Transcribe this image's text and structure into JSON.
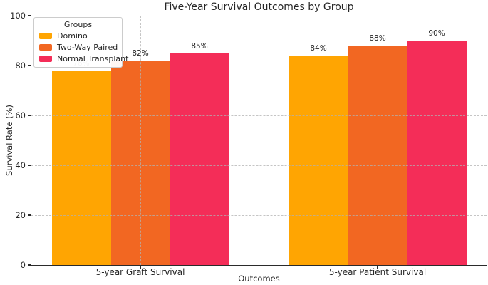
{
  "chart_data": {
    "type": "bar",
    "title": "Five-Year Survival Outcomes by Group",
    "xlabel": "Outcomes",
    "ylabel": "Survival Rate (%)",
    "categories": [
      "5-year Graft Survival",
      "5-year Patient Survival"
    ],
    "series": [
      {
        "name": "Domino",
        "color": "#FFA502",
        "values": [
          78,
          84
        ],
        "value_labels": [
          "78%",
          "84%"
        ]
      },
      {
        "name": "Two-Way Paired",
        "color": "#F26722",
        "values": [
          82,
          88
        ],
        "value_labels": [
          "82%",
          "88%"
        ]
      },
      {
        "name": "Normal Transplant",
        "color": "#F42D58",
        "values": [
          85,
          90
        ],
        "value_labels": [
          "85%",
          "90%"
        ]
      }
    ],
    "ylim": [
      0,
      100
    ],
    "yticks": [
      0,
      20,
      40,
      60,
      80,
      100
    ],
    "legend": {
      "title": "Groups",
      "position": "upper-left"
    },
    "grid": {
      "style": "dashed",
      "color": "#b2b2b2",
      "over_bars": true,
      "horizontal": true,
      "vertical": true
    }
  }
}
